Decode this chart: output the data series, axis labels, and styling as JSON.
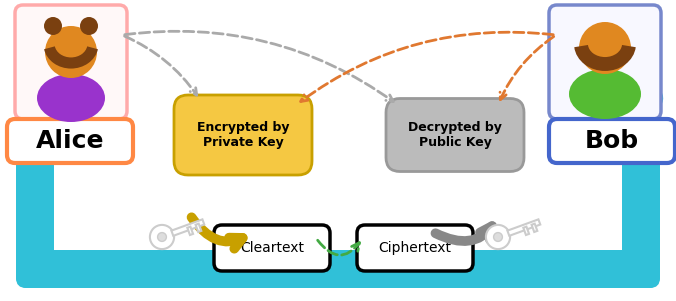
{
  "fig_width": 6.76,
  "fig_height": 3.01,
  "bg_color": "#ffffff",
  "alice_label": "Alice",
  "bob_label": "Bob",
  "cleartext_label": "Cleartext",
  "ciphertext_label": "Ciphertext",
  "encrypt_label": "Encrypted by\nPrivate Key",
  "decrypt_label": "Decrypted by\nPublic Key",
  "alice_border_color": "#ff8844",
  "alice_person_border": "#ffaaaa",
  "bob_border_color": "#4466cc",
  "encrypt_box_color": "#f5c842",
  "encrypt_border_color": "#c8a000",
  "decrypt_box_color": "#bbbbbb",
  "decrypt_border_color": "#999999",
  "teal_color": "#30c0d8",
  "gold_arrow_color": "#c8a000",
  "gray_arrow_color": "#888888",
  "dashed_gray_color": "#aaaaaa",
  "dashed_orange_color": "#e07830",
  "dashed_green_color": "#44aa44",
  "alice_head_color": "#e08820",
  "alice_hair_color": "#7a4010",
  "alice_body_color": "#9933cc",
  "bob_head_color": "#e08820",
  "bob_hair_color": "#7a4010",
  "bob_body_color": "#55bb33"
}
